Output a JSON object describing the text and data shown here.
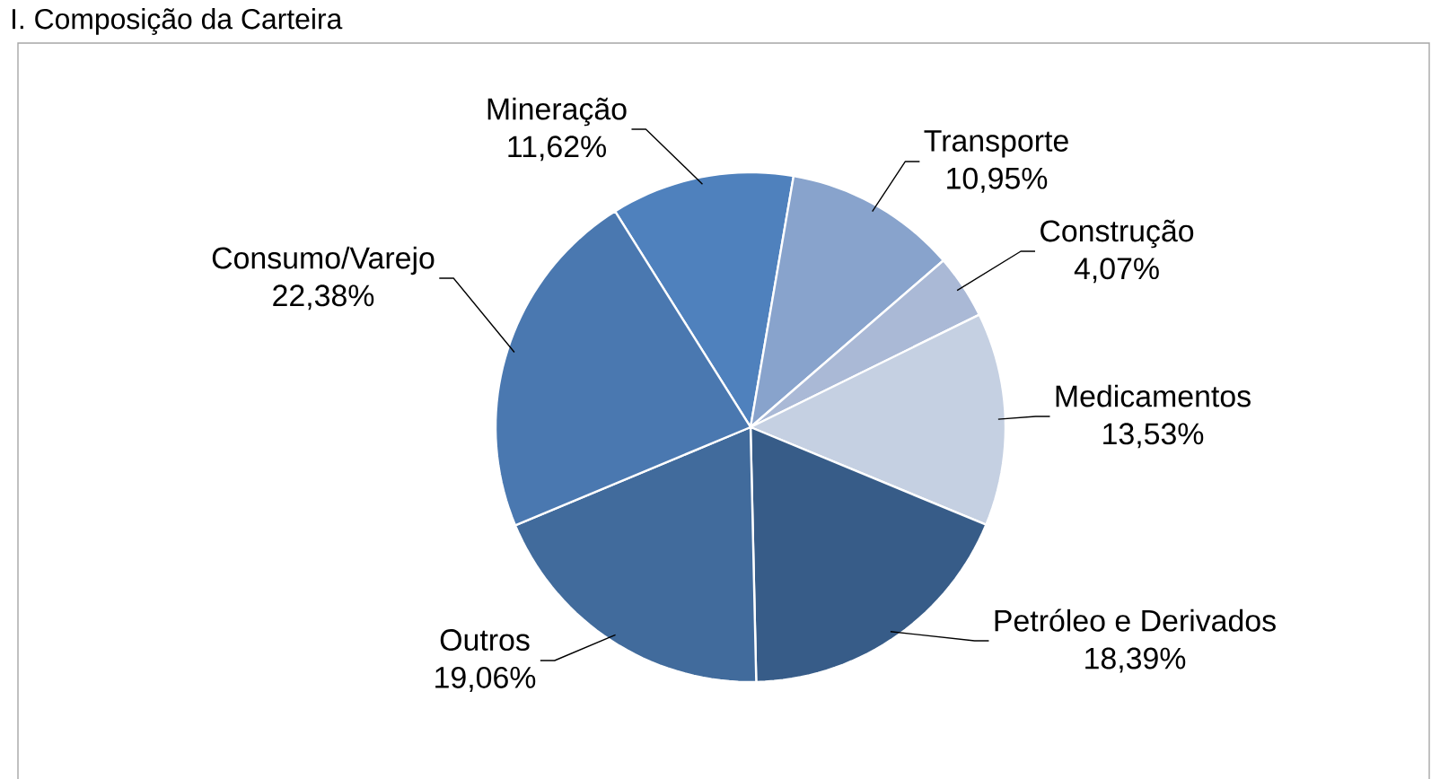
{
  "chart_data": {
    "type": "pie",
    "title": "I. Composição da Carteira",
    "categories": [
      "Mineração",
      "Transporte",
      "Construção",
      "Medicamentos",
      "Petróleo e Derivados",
      "Outros",
      "Consumo/Varejo"
    ],
    "values": [
      11.62,
      10.95,
      4.07,
      13.53,
      18.39,
      19.06,
      22.38
    ],
    "value_labels": [
      "11,62%",
      "10,95%",
      "4,07%",
      "13,53%",
      "18,39%",
      "19,06%",
      "22,38%"
    ],
    "colors": [
      "#4f81bd",
      "#88a3cc",
      "#aab9d6",
      "#c5d0e2",
      "#375c88",
      "#416b9c",
      "#4a78b0"
    ]
  }
}
